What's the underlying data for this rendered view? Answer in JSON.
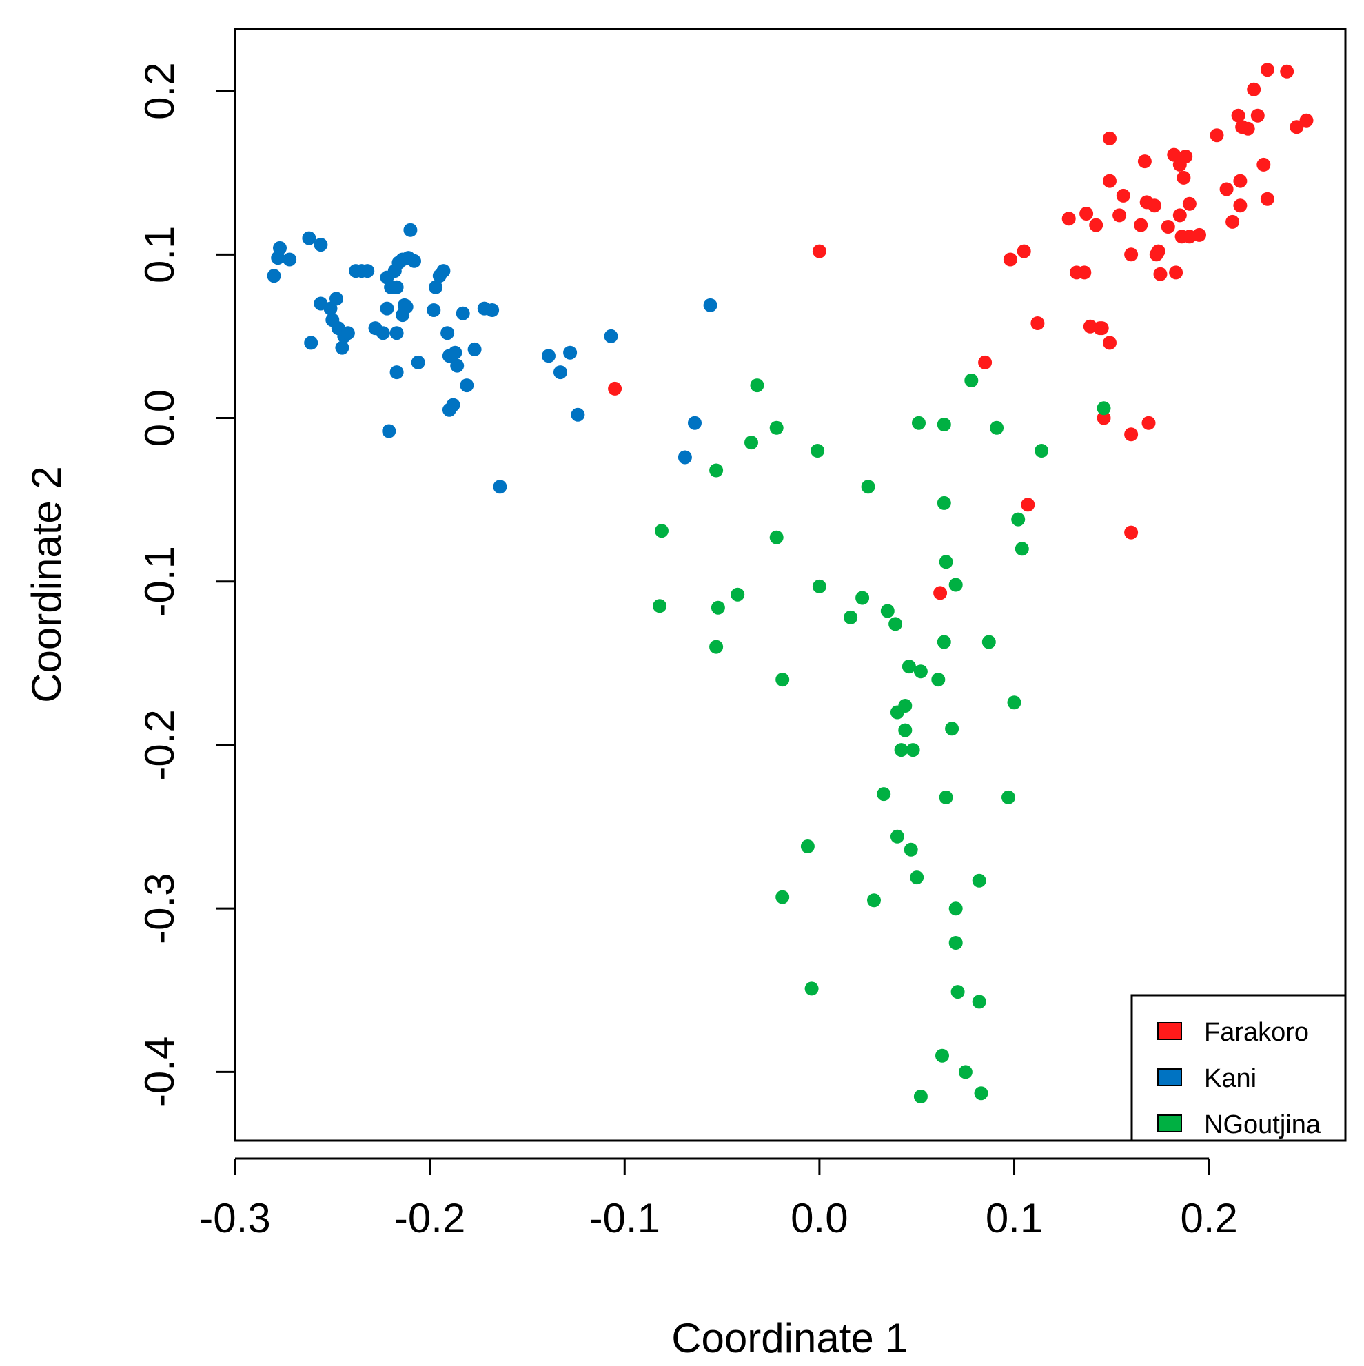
{
  "chart_data": {
    "type": "scatter",
    "title": "",
    "xlabel": "Coordinate 1",
    "ylabel": "Coordinate 2",
    "xlim": [
      -0.3,
      0.27
    ],
    "ylim": [
      -0.442,
      0.238
    ],
    "xticks": [
      -0.3,
      -0.2,
      -0.1,
      0.0,
      0.1,
      0.2
    ],
    "xtick_labels": [
      "-0.3",
      "-0.2",
      "-0.1",
      "0.0",
      "0.1",
      "0.2"
    ],
    "yticks": [
      -0.4,
      -0.3,
      -0.2,
      -0.1,
      0.0,
      0.1,
      0.2
    ],
    "ytick_labels": [
      "-0.4",
      "-0.3",
      "-0.2",
      "-0.1",
      "0.0",
      "0.1",
      "0.2"
    ],
    "grid": false,
    "legend_position": "bottom-right",
    "series": [
      {
        "name": "Farakoro",
        "color": "#ff1a1a",
        "points": [
          [
            0.0,
            0.102
          ],
          [
            -0.105,
            0.018
          ],
          [
            0.062,
            -0.107
          ],
          [
            0.085,
            0.034
          ],
          [
            0.098,
            0.097
          ],
          [
            0.105,
            0.102
          ],
          [
            0.112,
            0.058
          ],
          [
            0.107,
            -0.053
          ],
          [
            0.128,
            0.122
          ],
          [
            0.132,
            0.089
          ],
          [
            0.136,
            0.089
          ],
          [
            0.137,
            0.125
          ],
          [
            0.139,
            0.056
          ],
          [
            0.142,
            0.118
          ],
          [
            0.144,
            0.055
          ],
          [
            0.145,
            0.055
          ],
          [
            0.146,
            0.0
          ],
          [
            0.149,
            0.145
          ],
          [
            0.149,
            0.046
          ],
          [
            0.149,
            0.171
          ],
          [
            0.154,
            0.124
          ],
          [
            0.156,
            0.136
          ],
          [
            0.16,
            0.1
          ],
          [
            0.16,
            -0.01
          ],
          [
            0.16,
            -0.07
          ],
          [
            0.165,
            0.118
          ],
          [
            0.167,
            0.157
          ],
          [
            0.168,
            0.132
          ],
          [
            0.169,
            -0.003
          ],
          [
            0.172,
            0.13
          ],
          [
            0.173,
            0.1
          ],
          [
            0.174,
            0.102
          ],
          [
            0.175,
            0.088
          ],
          [
            0.179,
            0.117
          ],
          [
            0.182,
            0.161
          ],
          [
            0.183,
            0.089
          ],
          [
            0.185,
            0.124
          ],
          [
            0.185,
            0.155
          ],
          [
            0.186,
            0.111
          ],
          [
            0.187,
            0.147
          ],
          [
            0.188,
            0.16
          ],
          [
            0.19,
            0.131
          ],
          [
            0.19,
            0.111
          ],
          [
            0.195,
            0.112
          ],
          [
            0.204,
            0.173
          ],
          [
            0.209,
            0.14
          ],
          [
            0.212,
            0.12
          ],
          [
            0.215,
            0.185
          ],
          [
            0.216,
            0.145
          ],
          [
            0.216,
            0.13
          ],
          [
            0.217,
            0.178
          ],
          [
            0.22,
            0.177
          ],
          [
            0.223,
            0.201
          ],
          [
            0.225,
            0.185
          ],
          [
            0.228,
            0.155
          ],
          [
            0.23,
            0.213
          ],
          [
            0.23,
            0.134
          ],
          [
            0.24,
            0.212
          ],
          [
            0.245,
            0.178
          ],
          [
            0.25,
            0.182
          ]
        ]
      },
      {
        "name": "Kani",
        "color": "#0073c2",
        "points": [
          [
            -0.28,
            0.087
          ],
          [
            -0.278,
            0.098
          ],
          [
            -0.277,
            0.104
          ],
          [
            -0.272,
            0.097
          ],
          [
            -0.262,
            0.11
          ],
          [
            -0.261,
            0.046
          ],
          [
            -0.256,
            0.07
          ],
          [
            -0.256,
            0.106
          ],
          [
            -0.251,
            0.067
          ],
          [
            -0.25,
            0.06
          ],
          [
            -0.248,
            0.073
          ],
          [
            -0.247,
            0.055
          ],
          [
            -0.245,
            0.043
          ],
          [
            -0.244,
            0.05
          ],
          [
            -0.242,
            0.052
          ],
          [
            -0.238,
            0.09
          ],
          [
            -0.235,
            0.09
          ],
          [
            -0.232,
            0.09
          ],
          [
            -0.228,
            0.055
          ],
          [
            -0.224,
            0.052
          ],
          [
            -0.222,
            0.067
          ],
          [
            -0.222,
            0.086
          ],
          [
            -0.221,
            -0.008
          ],
          [
            -0.22,
            0.08
          ],
          [
            -0.218,
            0.09
          ],
          [
            -0.217,
            0.08
          ],
          [
            -0.217,
            0.052
          ],
          [
            -0.217,
            0.028
          ],
          [
            -0.216,
            0.095
          ],
          [
            -0.214,
            0.097
          ],
          [
            -0.214,
            0.063
          ],
          [
            -0.213,
            0.069
          ],
          [
            -0.212,
            0.068
          ],
          [
            -0.211,
            0.098
          ],
          [
            -0.21,
            0.115
          ],
          [
            -0.208,
            0.096
          ],
          [
            -0.206,
            0.034
          ],
          [
            -0.198,
            0.066
          ],
          [
            -0.197,
            0.08
          ],
          [
            -0.195,
            0.087
          ],
          [
            -0.193,
            0.09
          ],
          [
            -0.191,
            0.052
          ],
          [
            -0.19,
            0.005
          ],
          [
            -0.19,
            0.038
          ],
          [
            -0.188,
            0.008
          ],
          [
            -0.187,
            0.04
          ],
          [
            -0.186,
            0.032
          ],
          [
            -0.183,
            0.064
          ],
          [
            -0.181,
            0.02
          ],
          [
            -0.177,
            0.042
          ],
          [
            -0.172,
            0.067
          ],
          [
            -0.168,
            0.066
          ],
          [
            -0.164,
            -0.042
          ],
          [
            -0.139,
            0.038
          ],
          [
            -0.133,
            0.028
          ],
          [
            -0.128,
            0.04
          ],
          [
            -0.124,
            0.002
          ],
          [
            -0.107,
            0.05
          ],
          [
            -0.069,
            -0.024
          ],
          [
            -0.064,
            -0.003
          ],
          [
            -0.056,
            0.069
          ]
        ]
      },
      {
        "name": "NGoutjina",
        "color": "#00b042",
        "points": [
          [
            -0.081,
            -0.069
          ],
          [
            -0.082,
            -0.115
          ],
          [
            -0.053,
            -0.032
          ],
          [
            -0.052,
            -0.116
          ],
          [
            -0.053,
            -0.14
          ],
          [
            -0.042,
            -0.108
          ],
          [
            -0.035,
            -0.015
          ],
          [
            -0.032,
            0.02
          ],
          [
            -0.022,
            -0.006
          ],
          [
            -0.022,
            -0.073
          ],
          [
            -0.019,
            -0.16
          ],
          [
            -0.019,
            -0.293
          ],
          [
            -0.006,
            -0.262
          ],
          [
            -0.004,
            -0.349
          ],
          [
            -0.001,
            -0.02
          ],
          [
            0.0,
            -0.103
          ],
          [
            0.016,
            -0.122
          ],
          [
            0.022,
            -0.11
          ],
          [
            0.025,
            -0.042
          ],
          [
            0.028,
            -0.295
          ],
          [
            0.033,
            -0.23
          ],
          [
            0.035,
            -0.118
          ],
          [
            0.039,
            -0.126
          ],
          [
            0.04,
            -0.18
          ],
          [
            0.04,
            -0.256
          ],
          [
            0.042,
            -0.203
          ],
          [
            0.044,
            -0.176
          ],
          [
            0.044,
            -0.191
          ],
          [
            0.046,
            -0.152
          ],
          [
            0.047,
            -0.264
          ],
          [
            0.048,
            -0.203
          ],
          [
            0.05,
            -0.281
          ],
          [
            0.052,
            -0.155
          ],
          [
            0.051,
            -0.003
          ],
          [
            0.052,
            -0.415
          ],
          [
            0.061,
            -0.16
          ],
          [
            0.063,
            -0.39
          ],
          [
            0.064,
            -0.004
          ],
          [
            0.064,
            -0.052
          ],
          [
            0.064,
            -0.137
          ],
          [
            0.065,
            -0.088
          ],
          [
            0.065,
            -0.232
          ],
          [
            0.068,
            -0.19
          ],
          [
            0.07,
            -0.102
          ],
          [
            0.07,
            -0.321
          ],
          [
            0.07,
            -0.3
          ],
          [
            0.071,
            -0.351
          ],
          [
            0.075,
            -0.4
          ],
          [
            0.078,
            0.023
          ],
          [
            0.082,
            -0.283
          ],
          [
            0.082,
            -0.357
          ],
          [
            0.083,
            -0.413
          ],
          [
            0.087,
            -0.137
          ],
          [
            0.091,
            -0.006
          ],
          [
            0.097,
            -0.232
          ],
          [
            0.1,
            -0.174
          ],
          [
            0.102,
            -0.062
          ],
          [
            0.104,
            -0.08
          ],
          [
            0.114,
            -0.02
          ],
          [
            0.146,
            0.006
          ]
        ]
      }
    ]
  }
}
